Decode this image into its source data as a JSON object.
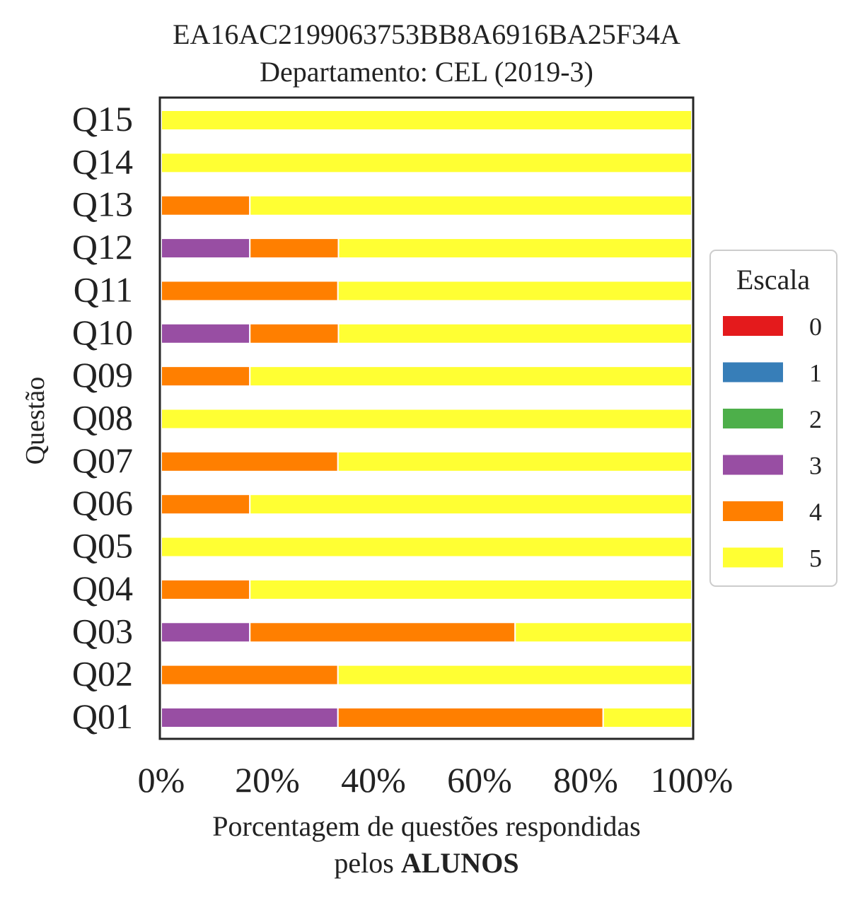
{
  "chart_data": {
    "type": "bar",
    "orientation": "horizontal",
    "stacked": true,
    "title": "EA16AC2199063753BB8A6916BA25F34A",
    "subtitle": "Departamento: CEL (2019-3)",
    "xlabel_line1": "Porcentagem de questões respondidas",
    "xlabel_line2_prefix": "pelos ",
    "xlabel_line2_bold": "ALUNOS",
    "ylabel": "Questão",
    "xlim": [
      0,
      100
    ],
    "x_ticks": [
      "0%",
      "20%",
      "40%",
      "60%",
      "80%",
      "100%"
    ],
    "grid": false,
    "categories": [
      "Q01",
      "Q02",
      "Q03",
      "Q04",
      "Q05",
      "Q06",
      "Q07",
      "Q08",
      "Q09",
      "Q10",
      "Q11",
      "Q12",
      "Q13",
      "Q14",
      "Q15"
    ],
    "series": [
      {
        "name": "0",
        "color": "#e41a1c",
        "values": [
          0,
          0,
          0,
          0,
          0,
          0,
          0,
          0,
          0,
          0,
          0,
          0,
          0,
          0,
          0
        ]
      },
      {
        "name": "1",
        "color": "#377eb8",
        "values": [
          0,
          0,
          0,
          0,
          0,
          0,
          0,
          0,
          0,
          0,
          0,
          0,
          0,
          0,
          0
        ]
      },
      {
        "name": "2",
        "color": "#4daf4a",
        "values": [
          0,
          0,
          0,
          0,
          0,
          0,
          0,
          0,
          0,
          0,
          0,
          0,
          0,
          0,
          0
        ]
      },
      {
        "name": "3",
        "color": "#984ea3",
        "values": [
          33.3,
          0,
          16.7,
          0,
          0,
          0,
          0,
          0,
          0,
          16.7,
          0,
          16.7,
          0,
          0,
          0
        ]
      },
      {
        "name": "4",
        "color": "#ff7f00",
        "values": [
          50,
          33.3,
          50,
          16.7,
          0,
          16.7,
          33.3,
          0,
          16.7,
          16.7,
          33.3,
          16.7,
          16.7,
          0,
          0
        ]
      },
      {
        "name": "5",
        "color": "#ffff33",
        "values": [
          16.7,
          66.7,
          33.3,
          83.3,
          100,
          83.3,
          66.7,
          100,
          83.3,
          66.6,
          66.7,
          66.6,
          83.3,
          100,
          100
        ]
      }
    ],
    "legend": {
      "title": "Escala",
      "placement": "right"
    }
  }
}
